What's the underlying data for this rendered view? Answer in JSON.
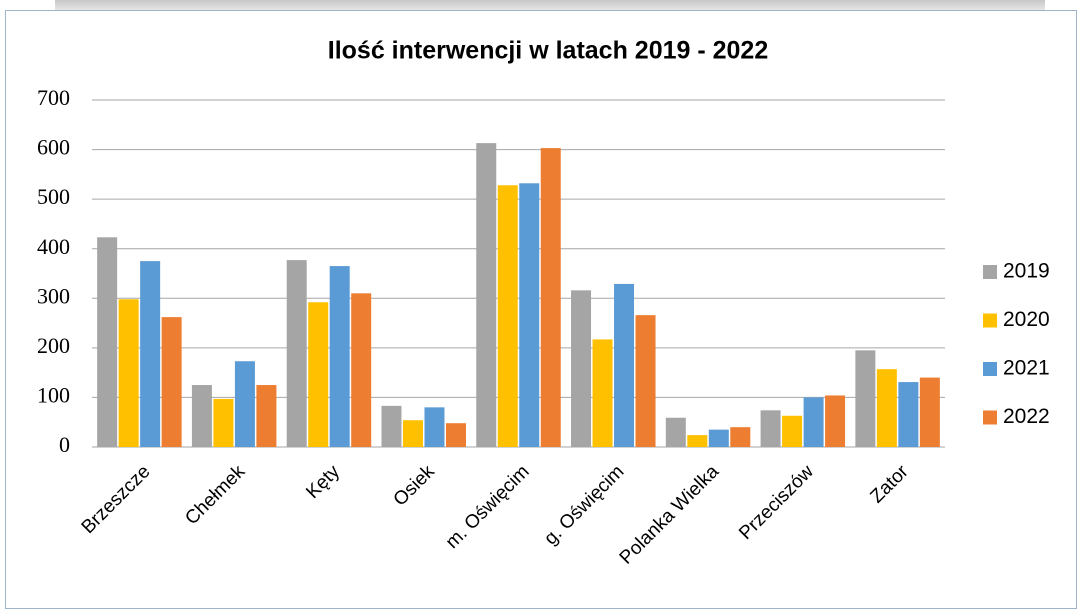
{
  "chart_data": {
    "type": "bar",
    "title": "Ilość interwencji w latach 2019 - 2022",
    "categories": [
      "Brzeszcze",
      "Chełmek",
      "Kęty",
      "Osiek",
      "m. Oświęcim",
      "g. Oświęcim",
      "Polanka Wielka",
      "Przeciszów",
      "Zator"
    ],
    "series": [
      {
        "name": "2019",
        "color": "#a5a5a5",
        "values": [
          423,
          125,
          377,
          83,
          613,
          316,
          59,
          74,
          195
        ]
      },
      {
        "name": "2020",
        "color": "#ffc000",
        "values": [
          298,
          97,
          292,
          54,
          528,
          217,
          24,
          63,
          157
        ]
      },
      {
        "name": "2021",
        "color": "#5b9bd5",
        "values": [
          375,
          173,
          365,
          80,
          532,
          329,
          35,
          100,
          131
        ]
      },
      {
        "name": "2022",
        "color": "#ed7d31",
        "values": [
          262,
          125,
          310,
          48,
          603,
          266,
          40,
          104,
          140
        ]
      }
    ],
    "ylim": [
      0,
      700
    ],
    "yticks": [
      0,
      100,
      200,
      300,
      400,
      500,
      600,
      700
    ],
    "grid": true,
    "legend": "right"
  }
}
